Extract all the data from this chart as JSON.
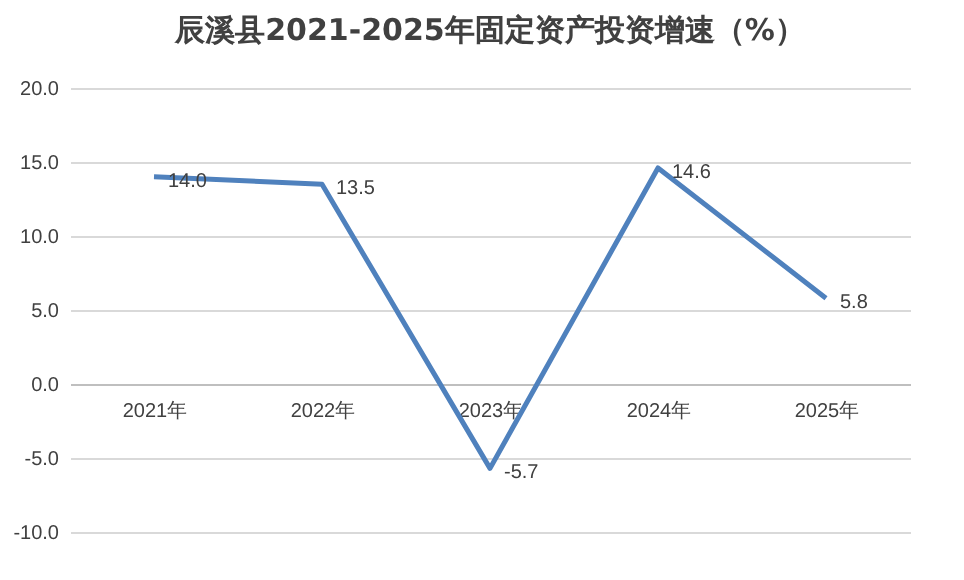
{
  "chart_data": {
    "type": "line",
    "title": "辰溪县2021-2025年固定资产投资增速（%）",
    "categories": [
      "2021年",
      "2022年",
      "2023年",
      "2024年",
      "2025年"
    ],
    "series": [
      {
        "color": "#4f81bd",
        "values": [
          14.0,
          13.5,
          -5.7,
          14.6,
          5.8
        ],
        "value_labels": [
          "14.0",
          "13.5",
          "-5.7",
          "14.6",
          "5.8"
        ]
      }
    ],
    "ylim": [
      -10,
      20
    ],
    "yticks": [
      {
        "value": -10,
        "label": "-10.0"
      },
      {
        "value": -5,
        "label": "-5.0"
      },
      {
        "value": 0,
        "label": "0.0"
      },
      {
        "value": 5,
        "label": "5.0"
      },
      {
        "value": 10,
        "label": "10.0"
      },
      {
        "value": 15,
        "label": "15.0"
      },
      {
        "value": 20,
        "label": "20.0"
      }
    ],
    "grid": "y",
    "marker": "none",
    "line_style": "solid"
  }
}
